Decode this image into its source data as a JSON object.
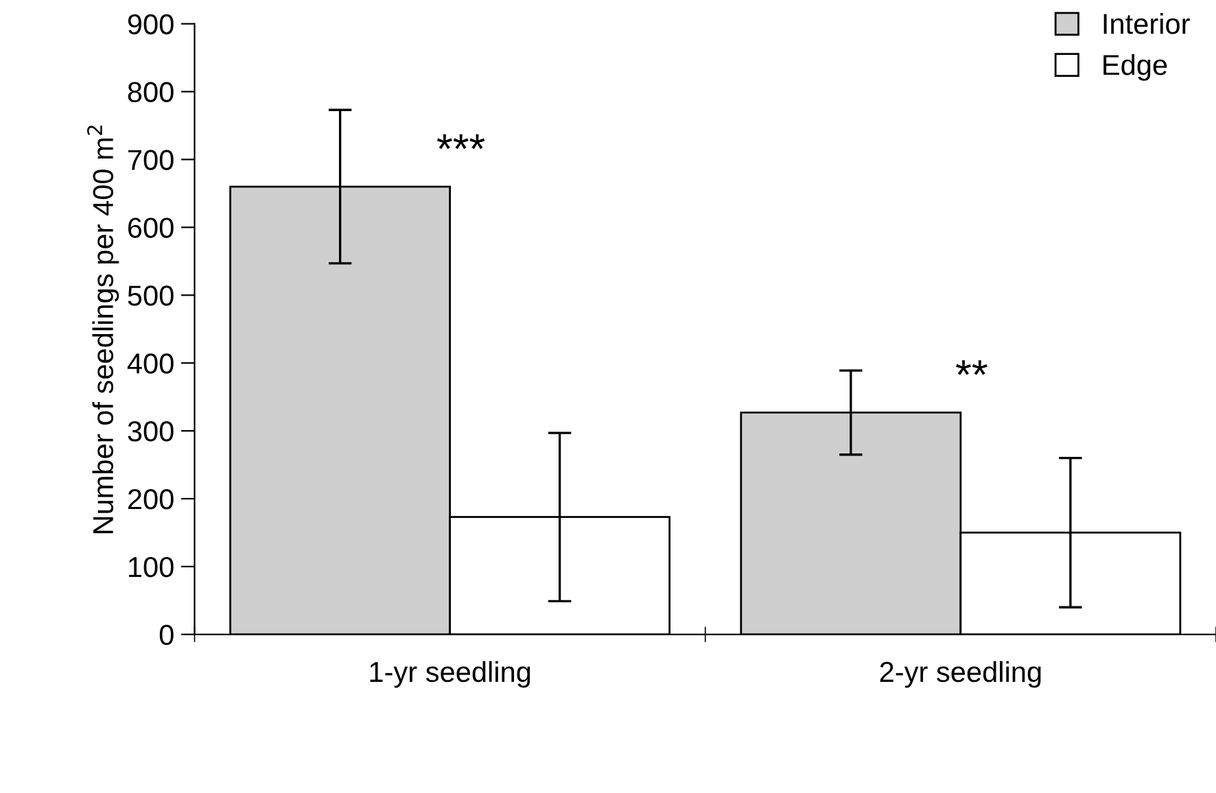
{
  "chart_data": {
    "type": "bar",
    "ylabel": "Number of seedlings per 400 m$^{2}$",
    "categories": [
      "1-yr seedling",
      "2-yr seedling"
    ],
    "series": [
      {
        "name": "Interior",
        "color": "#cfcfcf",
        "values": [
          660,
          327
        ],
        "errors": [
          113,
          62
        ]
      },
      {
        "name": "Edge",
        "color": "#ffffff",
        "values": [
          173,
          150
        ],
        "errors": [
          124,
          110
        ]
      }
    ],
    "ylim": [
      0,
      900
    ],
    "yticks": [
      0,
      100,
      200,
      300,
      400,
      500,
      600,
      700,
      800,
      900
    ],
    "grid": false,
    "legend": "top right",
    "annotations": [
      "***",
      "**"
    ]
  }
}
